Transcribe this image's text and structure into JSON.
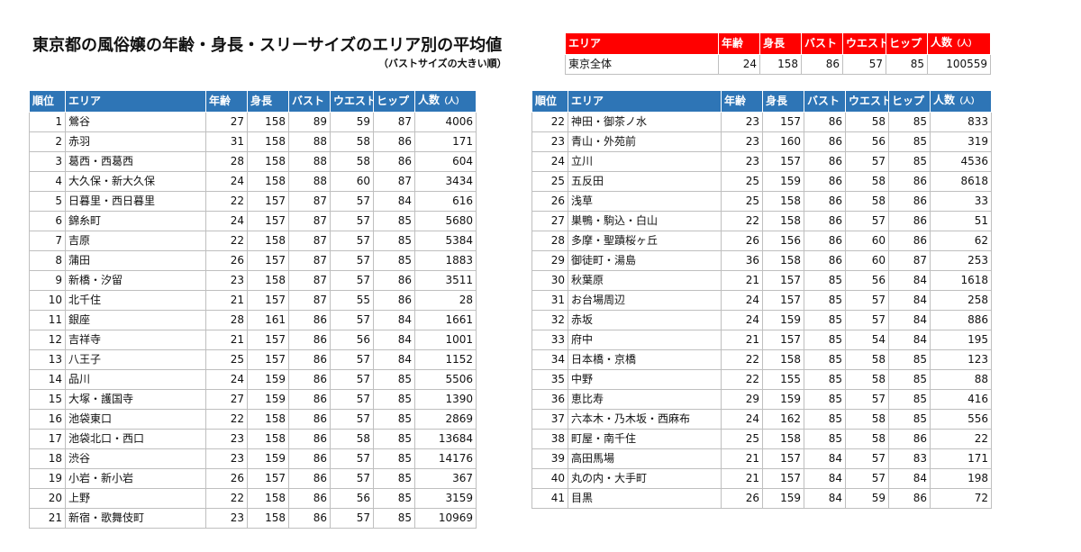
{
  "title": "東京都の風俗嬢の年齢・身長・スリーサイズのエリア別の平均値",
  "subtitle": "（バストサイズの大きい順）",
  "summary": {
    "headers": [
      "エリア",
      "年齢",
      "身長",
      "バスト",
      "ウエスト",
      "ヒップ",
      "人数",
      "（人）"
    ],
    "row": [
      "東京全体",
      "24",
      "158",
      "86",
      "57",
      "85",
      "100559"
    ]
  },
  "table_headers": [
    "順位",
    "エリア",
    "年齢",
    "身長",
    "バスト",
    "ウエスト",
    "ヒップ",
    "人数",
    "（人）"
  ],
  "left_rows": [
    [
      "1",
      "鶯谷",
      "27",
      "158",
      "89",
      "59",
      "87",
      "4006"
    ],
    [
      "2",
      "赤羽",
      "31",
      "158",
      "88",
      "58",
      "86",
      "171"
    ],
    [
      "3",
      "葛西・西葛西",
      "28",
      "158",
      "88",
      "58",
      "86",
      "604"
    ],
    [
      "4",
      "大久保・新大久保",
      "24",
      "158",
      "88",
      "60",
      "87",
      "3434"
    ],
    [
      "5",
      "日暮里・西日暮里",
      "22",
      "157",
      "87",
      "57",
      "84",
      "616"
    ],
    [
      "6",
      "錦糸町",
      "24",
      "157",
      "87",
      "57",
      "85",
      "5680"
    ],
    [
      "7",
      "吉原",
      "22",
      "158",
      "87",
      "57",
      "85",
      "5384"
    ],
    [
      "8",
      "蒲田",
      "26",
      "157",
      "87",
      "57",
      "85",
      "1883"
    ],
    [
      "9",
      "新橋・汐留",
      "23",
      "158",
      "87",
      "57",
      "86",
      "3511"
    ],
    [
      "10",
      "北千住",
      "21",
      "157",
      "87",
      "55",
      "86",
      "28"
    ],
    [
      "11",
      "銀座",
      "28",
      "161",
      "86",
      "57",
      "84",
      "1661"
    ],
    [
      "12",
      "吉祥寺",
      "21",
      "157",
      "86",
      "56",
      "84",
      "1001"
    ],
    [
      "13",
      "八王子",
      "25",
      "157",
      "86",
      "57",
      "84",
      "1152"
    ],
    [
      "14",
      "品川",
      "24",
      "159",
      "86",
      "57",
      "85",
      "5506"
    ],
    [
      "15",
      "大塚・護国寺",
      "27",
      "159",
      "86",
      "57",
      "85",
      "1390"
    ],
    [
      "16",
      "池袋東口",
      "22",
      "158",
      "86",
      "57",
      "85",
      "2869"
    ],
    [
      "17",
      "池袋北口・西口",
      "23",
      "158",
      "86",
      "58",
      "85",
      "13684"
    ],
    [
      "18",
      "渋谷",
      "23",
      "159",
      "86",
      "57",
      "85",
      "14176"
    ],
    [
      "19",
      "小岩・新小岩",
      "26",
      "157",
      "86",
      "57",
      "85",
      "367"
    ],
    [
      "20",
      "上野",
      "22",
      "158",
      "86",
      "56",
      "85",
      "3159"
    ],
    [
      "21",
      "新宿・歌舞伎町",
      "23",
      "158",
      "86",
      "57",
      "85",
      "10969"
    ]
  ],
  "right_rows": [
    [
      "22",
      "神田・御茶ノ水",
      "23",
      "157",
      "86",
      "58",
      "85",
      "833"
    ],
    [
      "23",
      "青山・外苑前",
      "23",
      "160",
      "86",
      "56",
      "85",
      "319"
    ],
    [
      "24",
      "立川",
      "23",
      "157",
      "86",
      "57",
      "85",
      "4536"
    ],
    [
      "25",
      "五反田",
      "25",
      "159",
      "86",
      "58",
      "86",
      "8618"
    ],
    [
      "26",
      "浅草",
      "25",
      "158",
      "86",
      "58",
      "86",
      "33"
    ],
    [
      "27",
      "巣鴨・駒込・白山",
      "22",
      "158",
      "86",
      "57",
      "86",
      "51"
    ],
    [
      "28",
      "多摩・聖蹟桜ヶ丘",
      "26",
      "156",
      "86",
      "60",
      "86",
      "62"
    ],
    [
      "29",
      "御徒町・湯島",
      "36",
      "158",
      "86",
      "60",
      "87",
      "253"
    ],
    [
      "30",
      "秋葉原",
      "21",
      "157",
      "85",
      "56",
      "84",
      "1618"
    ],
    [
      "31",
      "お台場周辺",
      "24",
      "157",
      "85",
      "57",
      "84",
      "258"
    ],
    [
      "32",
      "赤坂",
      "24",
      "159",
      "85",
      "57",
      "84",
      "886"
    ],
    [
      "33",
      "府中",
      "21",
      "157",
      "85",
      "54",
      "84",
      "195"
    ],
    [
      "34",
      "日本橋・京橋",
      "22",
      "158",
      "85",
      "58",
      "85",
      "123"
    ],
    [
      "35",
      "中野",
      "22",
      "155",
      "85",
      "58",
      "85",
      "88"
    ],
    [
      "36",
      "恵比寿",
      "29",
      "159",
      "85",
      "57",
      "85",
      "416"
    ],
    [
      "37",
      "六本木・乃木坂・西麻布",
      "24",
      "162",
      "85",
      "58",
      "85",
      "556"
    ],
    [
      "38",
      "町屋・南千住",
      "25",
      "158",
      "85",
      "58",
      "86",
      "22"
    ],
    [
      "39",
      "高田馬場",
      "21",
      "157",
      "84",
      "57",
      "83",
      "171"
    ],
    [
      "40",
      "丸の内・大手町",
      "21",
      "157",
      "84",
      "57",
      "84",
      "198"
    ],
    [
      "41",
      "目黒",
      "26",
      "159",
      "84",
      "59",
      "86",
      "72"
    ]
  ],
  "colors": {
    "header_blue": "#2e75b6",
    "header_red": "#ff0000"
  }
}
